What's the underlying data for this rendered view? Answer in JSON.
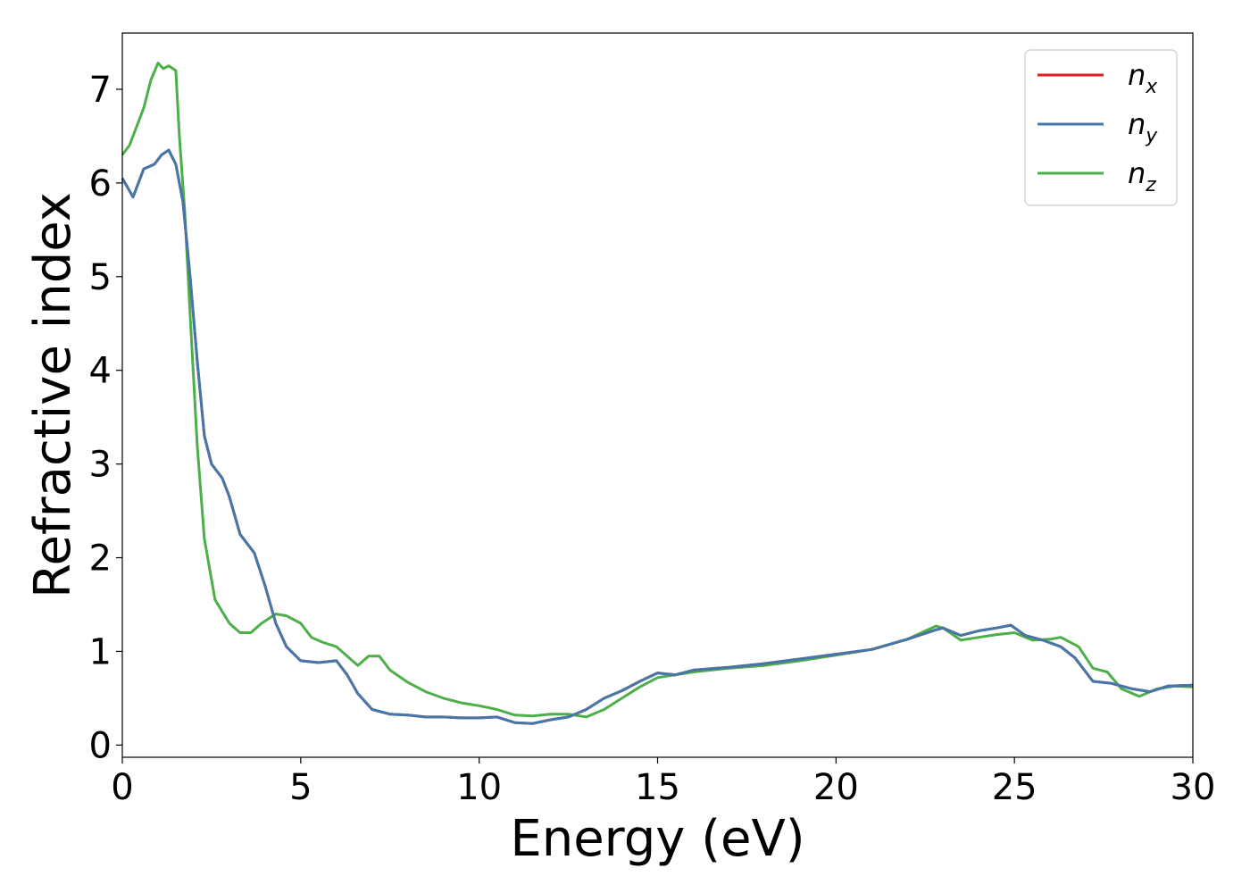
{
  "chart_data": {
    "type": "line",
    "title": "",
    "xlabel": "Energy (eV)",
    "ylabel": "Refractive index",
    "xlim": [
      0,
      30
    ],
    "ylim": [
      -0.13,
      7.6
    ],
    "xticks": [
      0,
      5,
      10,
      15,
      20,
      25,
      30
    ],
    "yticks": [
      0,
      1,
      2,
      3,
      4,
      5,
      6,
      7
    ],
    "grid": false,
    "legend_position": "top-right",
    "series": [
      {
        "name": "n_x",
        "legend_base": "n",
        "legend_sub": "x",
        "color": "#e41a1c",
        "x": [
          0,
          0.3,
          0.6,
          0.9,
          1.1,
          1.3,
          1.5,
          1.7,
          1.9,
          2.1,
          2.3,
          2.5,
          2.8,
          3.0,
          3.3,
          3.7,
          4.0,
          4.3,
          4.6,
          5.0,
          5.5,
          6.0,
          6.3,
          6.6,
          7.0,
          7.5,
          8.0,
          8.5,
          9.0,
          9.5,
          10.0,
          10.5,
          11.0,
          11.5,
          12.0,
          12.5,
          13.0,
          13.5,
          14.0,
          14.5,
          15.0,
          15.5,
          16.0,
          17.0,
          18.0,
          19.0,
          20.0,
          21.0,
          22.0,
          22.8,
          23.0,
          23.5,
          24.0,
          24.5,
          24.9,
          25.3,
          25.8,
          26.3,
          26.7,
          27.2,
          27.7,
          28.3,
          28.8,
          29.3,
          30.0
        ],
        "y": [
          6.05,
          5.85,
          6.15,
          6.2,
          6.3,
          6.35,
          6.2,
          5.8,
          5.0,
          4.1,
          3.3,
          3.0,
          2.85,
          2.65,
          2.25,
          2.05,
          1.7,
          1.3,
          1.05,
          0.9,
          0.88,
          0.9,
          0.75,
          0.55,
          0.38,
          0.33,
          0.32,
          0.3,
          0.3,
          0.29,
          0.29,
          0.3,
          0.24,
          0.23,
          0.27,
          0.3,
          0.38,
          0.5,
          0.58,
          0.68,
          0.77,
          0.75,
          0.8,
          0.83,
          0.87,
          0.92,
          0.97,
          1.02,
          1.13,
          1.23,
          1.25,
          1.17,
          1.22,
          1.25,
          1.28,
          1.17,
          1.12,
          1.05,
          0.93,
          0.68,
          0.66,
          0.6,
          0.57,
          0.63,
          0.64
        ]
      },
      {
        "name": "n_y",
        "legend_base": "n",
        "legend_sub": "y",
        "color": "#4477aa",
        "x": [
          0,
          0.3,
          0.6,
          0.9,
          1.1,
          1.3,
          1.5,
          1.7,
          1.9,
          2.1,
          2.3,
          2.5,
          2.8,
          3.0,
          3.3,
          3.7,
          4.0,
          4.3,
          4.6,
          5.0,
          5.5,
          6.0,
          6.3,
          6.6,
          7.0,
          7.5,
          8.0,
          8.5,
          9.0,
          9.5,
          10.0,
          10.5,
          11.0,
          11.5,
          12.0,
          12.5,
          13.0,
          13.5,
          14.0,
          14.5,
          15.0,
          15.5,
          16.0,
          17.0,
          18.0,
          19.0,
          20.0,
          21.0,
          22.0,
          22.8,
          23.0,
          23.5,
          24.0,
          24.5,
          24.9,
          25.3,
          25.8,
          26.3,
          26.7,
          27.2,
          27.7,
          28.3,
          28.8,
          29.3,
          30.0
        ],
        "y": [
          6.05,
          5.85,
          6.15,
          6.2,
          6.3,
          6.35,
          6.2,
          5.8,
          5.0,
          4.1,
          3.3,
          3.0,
          2.85,
          2.65,
          2.25,
          2.05,
          1.7,
          1.3,
          1.05,
          0.9,
          0.88,
          0.9,
          0.75,
          0.55,
          0.38,
          0.33,
          0.32,
          0.3,
          0.3,
          0.29,
          0.29,
          0.3,
          0.24,
          0.23,
          0.27,
          0.3,
          0.38,
          0.5,
          0.58,
          0.68,
          0.77,
          0.75,
          0.8,
          0.83,
          0.87,
          0.92,
          0.97,
          1.02,
          1.13,
          1.23,
          1.25,
          1.17,
          1.22,
          1.25,
          1.28,
          1.17,
          1.12,
          1.05,
          0.93,
          0.68,
          0.66,
          0.6,
          0.57,
          0.63,
          0.64
        ]
      },
      {
        "name": "n_z",
        "legend_base": "n",
        "legend_sub": "z",
        "color": "#4daf4a",
        "x": [
          0,
          0.2,
          0.4,
          0.6,
          0.8,
          1.0,
          1.15,
          1.3,
          1.5,
          1.6,
          1.75,
          1.9,
          2.1,
          2.3,
          2.6,
          3.0,
          3.3,
          3.6,
          3.9,
          4.3,
          4.6,
          5.0,
          5.3,
          5.6,
          6.0,
          6.3,
          6.6,
          6.9,
          7.2,
          7.5,
          8.0,
          8.5,
          9.0,
          9.5,
          10.0,
          10.5,
          11.0,
          11.5,
          12.0,
          12.5,
          13.0,
          13.5,
          14.0,
          14.5,
          15.0,
          15.5,
          16.0,
          17.0,
          18.0,
          19.0,
          20.0,
          21.0,
          22.0,
          22.8,
          23.0,
          23.5,
          24.0,
          24.5,
          25.0,
          25.5,
          26.0,
          26.3,
          26.8,
          27.2,
          27.6,
          28.0,
          28.5,
          29.0,
          29.5,
          30.0
        ],
        "y": [
          6.3,
          6.4,
          6.6,
          6.8,
          7.1,
          7.28,
          7.22,
          7.25,
          7.2,
          6.5,
          5.7,
          4.6,
          3.2,
          2.2,
          1.55,
          1.3,
          1.2,
          1.2,
          1.3,
          1.4,
          1.38,
          1.3,
          1.15,
          1.1,
          1.05,
          0.95,
          0.85,
          0.95,
          0.95,
          0.8,
          0.67,
          0.57,
          0.5,
          0.45,
          0.42,
          0.38,
          0.32,
          0.31,
          0.33,
          0.33,
          0.3,
          0.38,
          0.5,
          0.62,
          0.72,
          0.75,
          0.78,
          0.82,
          0.85,
          0.9,
          0.96,
          1.02,
          1.13,
          1.27,
          1.25,
          1.12,
          1.15,
          1.18,
          1.2,
          1.12,
          1.13,
          1.15,
          1.05,
          0.82,
          0.78,
          0.6,
          0.52,
          0.6,
          0.63,
          0.62
        ]
      }
    ]
  }
}
